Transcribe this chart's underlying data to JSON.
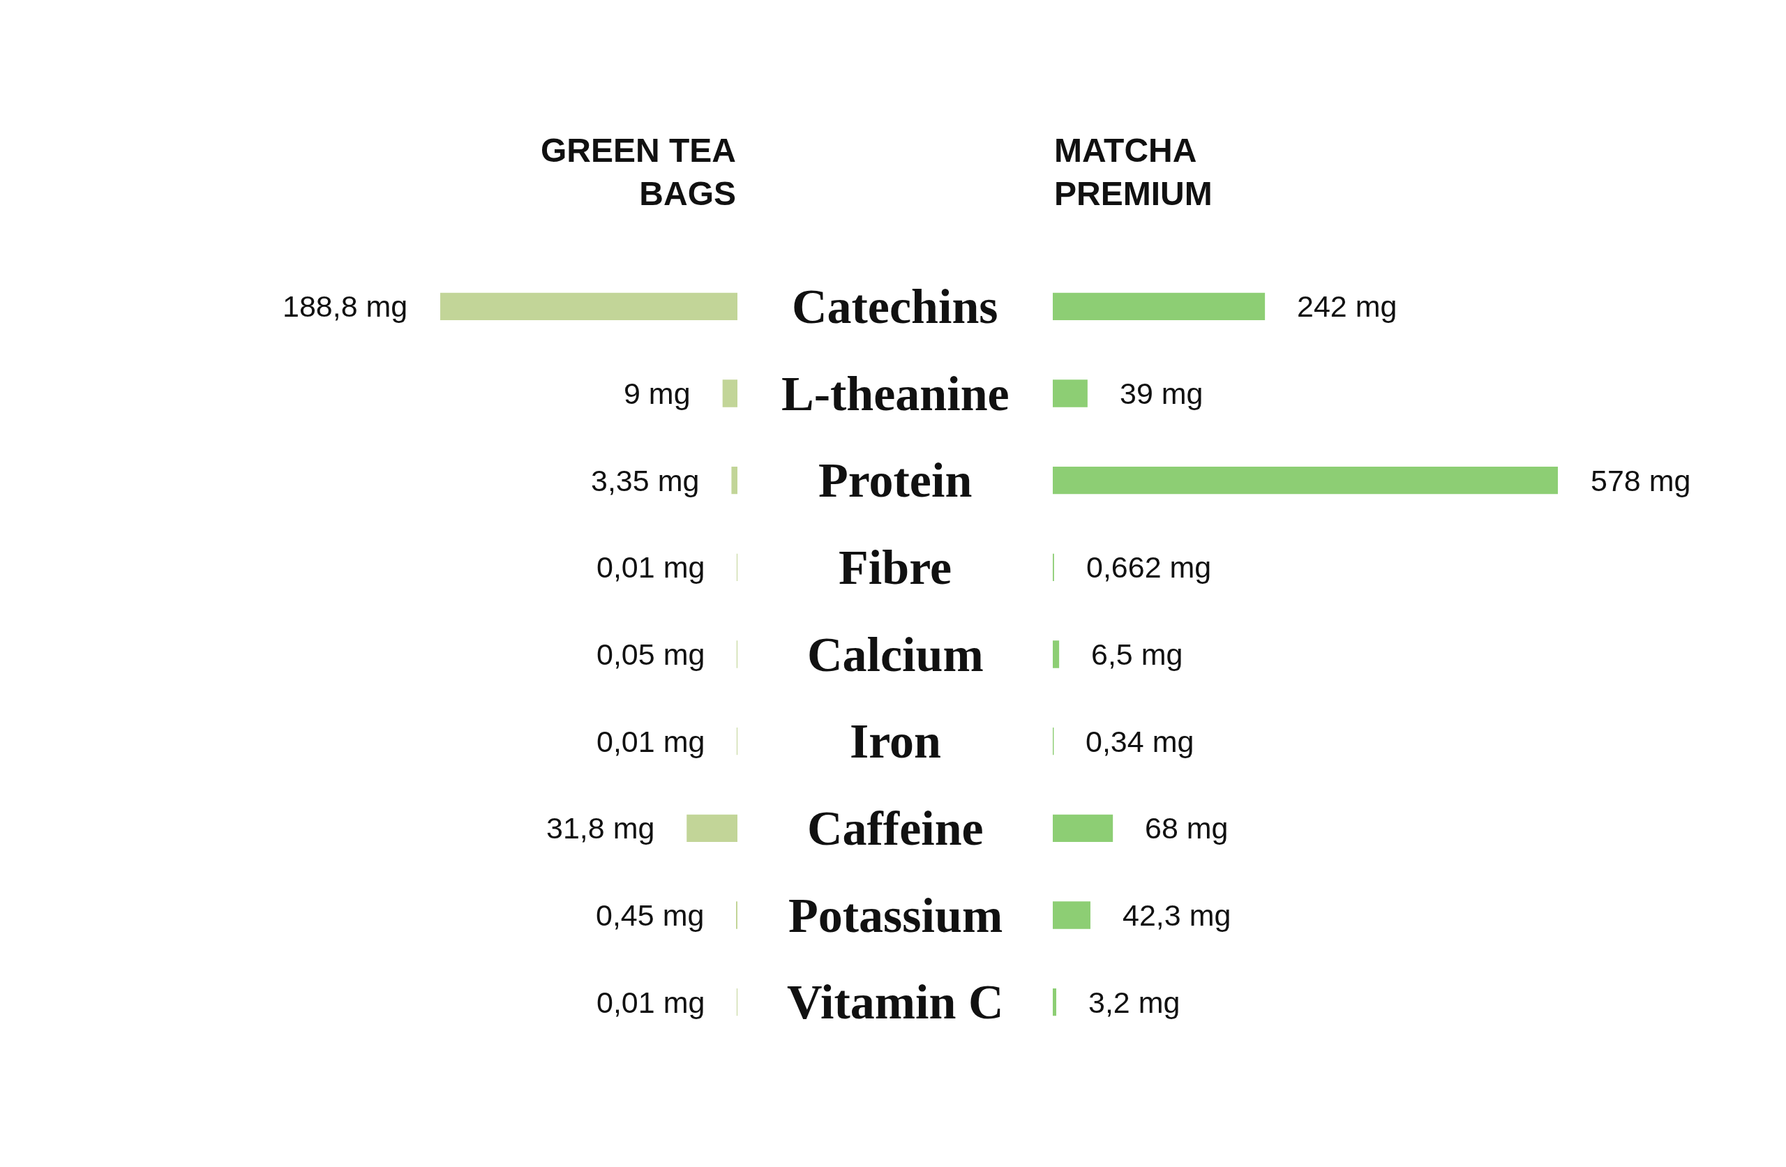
{
  "chart_data": [
    {
      "type": "bar",
      "orientation": "horizontal",
      "title": "GREEN TEA\nBAGS",
      "tick_labels": "y",
      "color": "#c2d598",
      "categories": [
        "Catechins",
        "L-theanine",
        "Protein",
        "Fibre",
        "Calcium",
        "Iron",
        "Caffeine",
        "Potassium",
        "Vitamin C"
      ],
      "values": [
        188.8,
        9,
        3.35,
        0.01,
        0.05,
        0.01,
        31.8,
        0.45,
        0.01
      ],
      "value_labels": [
        "188,8 mg",
        "9 mg",
        "3,35 mg",
        "0,01 mg",
        "0,05 mg",
        "0,01 mg",
        "31,8 mg",
        "0,45 mg",
        "0,01 mg"
      ]
    },
    {
      "type": "bar",
      "orientation": "horizontal",
      "title": "MATCHA\nPREMIUM",
      "color": "#8dce74",
      "categories": [
        null,
        null,
        null,
        null,
        null,
        null,
        null,
        null,
        null
      ],
      "values": [
        242,
        39,
        578,
        0.662,
        6.5,
        0.34,
        68,
        42.3,
        3.2
      ],
      "value_labels": [
        "242 mg",
        "39 mg",
        "578 mg",
        "0,662 mg",
        "6,5 mg",
        "0,34 mg",
        "68 mg",
        "42,3 mg",
        "3,2 mg"
      ]
    }
  ]
}
